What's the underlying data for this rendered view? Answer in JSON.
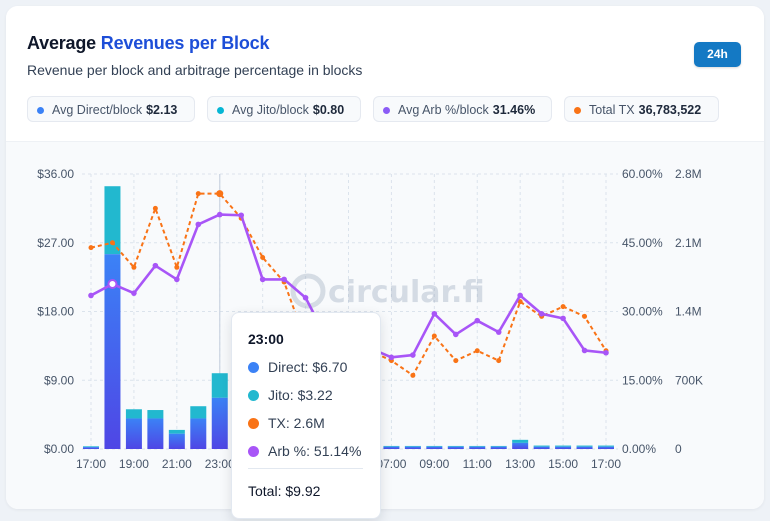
{
  "header": {
    "title_main": "Average ",
    "title_accent": "Revenues per Block",
    "subtitle": "Revenue per block and arbitrage percentage in blocks",
    "range_label": "24h"
  },
  "stats": [
    {
      "label": "Avg Direct/block",
      "value": "$2.13",
      "color": "#3b82f6"
    },
    {
      "label": "Avg Jito/block",
      "value": "$0.80",
      "color": "#06b6d4"
    },
    {
      "label": "Avg Arb %/block",
      "value": "31.46%",
      "color": "#8b5cf6"
    },
    {
      "label": "Total TX",
      "value": "36,783,522",
      "color": "#f97316"
    }
  ],
  "watermark": "circular.fi",
  "tooltip": {
    "time": "23:00",
    "direct": "Direct: $6.70",
    "jito": "Jito: $3.22",
    "tx": "TX: 2.6M",
    "arb": "Arb %: 51.14%",
    "total": "Total: $9.92"
  },
  "colors": {
    "direct": "#3b82f6",
    "jito": "#22b8cf",
    "tx": "#f97316",
    "arb": "#a855f7"
  },
  "chart_data": {
    "type": "bar",
    "categories": [
      "17:00",
      "18:00",
      "19:00",
      "20:00",
      "21:00",
      "22:00",
      "23:00",
      "00:00",
      "01:00",
      "02:00",
      "03:00",
      "04:00",
      "05:00",
      "06:00",
      "07:00",
      "08:00",
      "09:00",
      "10:00",
      "11:00",
      "12:00",
      "13:00",
      "14:00",
      "15:00",
      "16:00",
      "17:00"
    ],
    "x_tick_labels": [
      "17:00",
      "19:00",
      "21:00",
      "23:00",
      "01:00",
      "03:00",
      "05:00",
      "07:00",
      "09:00",
      "11:00",
      "13:00",
      "15:00",
      "17:00"
    ],
    "series": [
      {
        "name": "Direct",
        "axis": "left",
        "stack": "revenue",
        "values": [
          0.25,
          25.5,
          4.0,
          4.0,
          2.0,
          4.0,
          6.7,
          0.3,
          0.3,
          0.3,
          0.3,
          0.3,
          0.3,
          0.3,
          0.3,
          0.3,
          0.3,
          0.3,
          0.3,
          0.3,
          0.8,
          0.3,
          0.3,
          0.3,
          0.3
        ]
      },
      {
        "name": "Jito",
        "axis": "left",
        "stack": "revenue",
        "values": [
          0.1,
          8.9,
          1.2,
          1.1,
          0.5,
          1.6,
          3.22,
          0.1,
          0.1,
          0.1,
          0.1,
          0.1,
          0.1,
          0.1,
          0.1,
          0.1,
          0.1,
          0.1,
          0.1,
          0.1,
          0.4,
          0.15,
          0.15,
          0.15,
          0.15
        ]
      },
      {
        "name": "TX",
        "axis": "right",
        "type": "line",
        "values": [
          2.05,
          2.1,
          1.85,
          2.45,
          1.85,
          2.6,
          2.6,
          2.35,
          1.95,
          1.7,
          1.1,
          1.0,
          0.95,
          1.0,
          0.9,
          0.75,
          1.15,
          0.9,
          1.0,
          0.9,
          1.5,
          1.35,
          1.45,
          1.35,
          1.0
        ]
      },
      {
        "name": "Arb %",
        "axis": "right2",
        "type": "line",
        "values": [
          33.5,
          36.0,
          34.0,
          40.0,
          37.0,
          49.0,
          51.14,
          51.0,
          37.0,
          37.0,
          33.0,
          24.0,
          25.0,
          22.0,
          20.0,
          20.5,
          29.5,
          25.0,
          28.0,
          25.5,
          33.5,
          29.5,
          28.5,
          21.5,
          21.0
        ]
      }
    ],
    "ylim_left": [
      0,
      36
    ],
    "yticks_left": [
      "$0.00",
      "$9.00",
      "$18.00",
      "$27.00",
      "$36.00"
    ],
    "ylim_right_pct": [
      0,
      60
    ],
    "yticks_right_pct": [
      "0.00%",
      "15.00%",
      "30.00%",
      "45.00%",
      "60.00%"
    ],
    "ylim_right_tx": [
      0,
      2.8
    ],
    "yticks_right_tx": [
      "0",
      "700K",
      "1.4M",
      "2.1M",
      "2.8M"
    ],
    "grid": true,
    "highlight_index": 6
  }
}
